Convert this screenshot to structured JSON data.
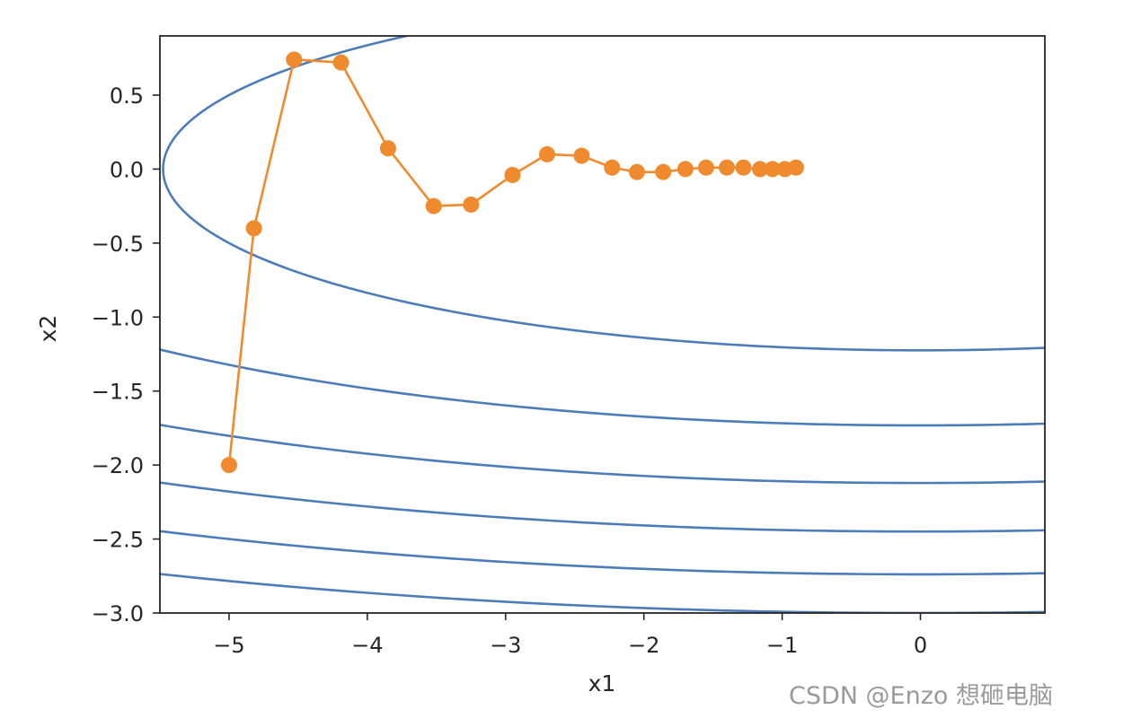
{
  "chart_data": {
    "type": "line",
    "xlabel": "x1",
    "ylabel": "x2",
    "xlim": [
      -5.5,
      0.9
    ],
    "ylim": [
      -3.0,
      0.9
    ],
    "x_ticks": [
      -5,
      -4,
      -3,
      -2,
      -1,
      0
    ],
    "x_tick_labels": [
      "−5",
      "−4",
      "−3",
      "−2",
      "−1",
      "0"
    ],
    "y_ticks": [
      0.5,
      0.0,
      -0.5,
      -1.0,
      -1.5,
      -2.0,
      -2.5,
      -3.0
    ],
    "y_tick_labels": [
      "0.5",
      "0.0",
      "−0.5",
      "−1.0",
      "−1.5",
      "−2.0",
      "−2.5",
      "−3.0"
    ],
    "grid": false,
    "contour": {
      "function": "f(x1, x2) = 0.1*x1^2 + 2*x2^2",
      "levels": [
        3,
        6,
        9,
        12,
        15,
        18
      ],
      "color": "#4c7db8"
    },
    "series": [
      {
        "color": "#f08a2e",
        "marker": "circle",
        "x": [
          -5.0,
          -4.82,
          -4.53,
          -4.19,
          -3.85,
          -3.52,
          -3.25,
          -2.95,
          -2.7,
          -2.45,
          -2.23,
          -2.05,
          -1.86,
          -1.7,
          -1.55,
          -1.4,
          -1.28,
          -1.16,
          -1.07,
          -0.98,
          -0.9
        ],
        "y": [
          -2.0,
          -0.4,
          0.74,
          0.72,
          0.14,
          -0.25,
          -0.24,
          -0.04,
          0.1,
          0.09,
          0.01,
          -0.02,
          -0.02,
          0.0,
          0.01,
          0.01,
          0.01,
          0.0,
          0.0,
          0.0,
          0.01
        ]
      }
    ]
  },
  "watermark": "CSDN @Enzo 想砸电脑"
}
